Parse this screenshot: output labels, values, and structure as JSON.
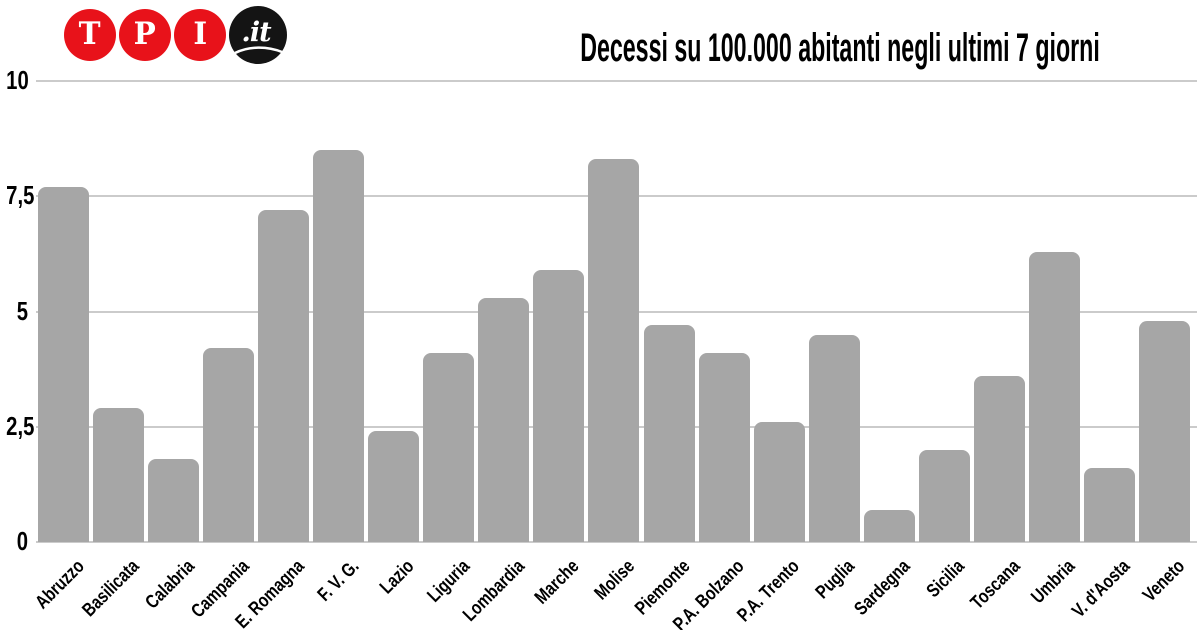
{
  "logo": {
    "letters": [
      "T",
      "P",
      "I"
    ],
    "domain": ".it",
    "red": "#e8121a",
    "black": "#141414"
  },
  "chart_data": {
    "type": "bar",
    "title": "Decessi su 100.000 abitanti negli ultimi 7 giorni",
    "categories": [
      "Abruzzo",
      "Basilicata",
      "Calabria",
      "Campania",
      "E. Romagna",
      "F. V. G.",
      "Lazio",
      "Liguria",
      "Lombardia",
      "Marche",
      "Molise",
      "Piemonte",
      "P.A. Bolzano",
      "P.A. Trento",
      "Puglia",
      "Sardegna",
      "Sicilia",
      "Toscana",
      "Umbria",
      "V. d'Aosta",
      "Veneto"
    ],
    "values": [
      7.7,
      2.9,
      1.8,
      4.2,
      7.2,
      8.5,
      2.4,
      4.1,
      5.3,
      5.9,
      8.3,
      4.7,
      4.1,
      2.6,
      4.5,
      0.7,
      2.0,
      3.6,
      6.3,
      1.6,
      4.8
    ],
    "xlabel": "",
    "ylabel": "",
    "ylim": [
      0,
      10
    ],
    "yticks": [
      0,
      2.5,
      5,
      7.5,
      10
    ],
    "ytick_labels": [
      "0",
      "2,5",
      "5",
      "7,5",
      "10"
    ],
    "bar_color": "#a6a6a6",
    "grid_color": "#cbcbcb",
    "grid": true,
    "legend_position": "none"
  }
}
